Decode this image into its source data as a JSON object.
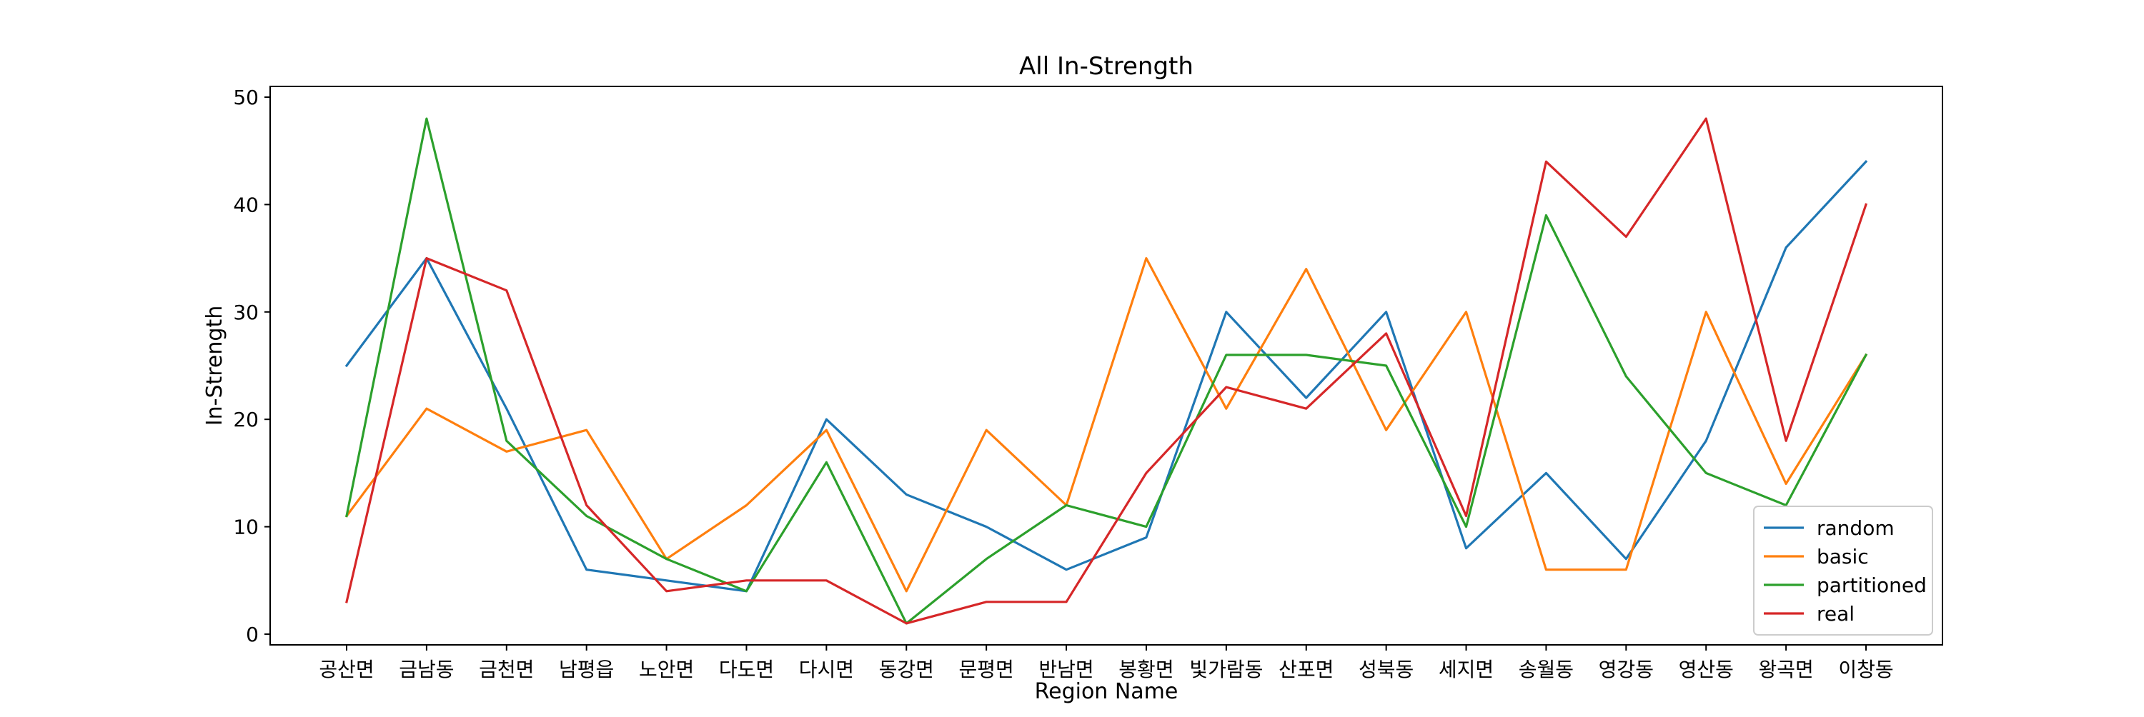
{
  "chart_data": {
    "type": "line",
    "title": "All In-Strength",
    "xlabel": "Region Name",
    "ylabel": "In-Strength",
    "categories": [
      "공산면",
      "금남동",
      "금천면",
      "남평읍",
      "노안면",
      "다도면",
      "다시면",
      "동강면",
      "문평면",
      "반남면",
      "봉황면",
      "빛가람동",
      "산포면",
      "성북동",
      "세지면",
      "송월동",
      "영강동",
      "영산동",
      "왕곡면",
      "이창동"
    ],
    "ylim": [
      -1,
      51
    ],
    "yticks": [
      0,
      10,
      20,
      30,
      40,
      50
    ],
    "grid": false,
    "legend_position": "lower right",
    "series": [
      {
        "name": "random",
        "color": "#1f77b4",
        "values": [
          25,
          35,
          21,
          6,
          5,
          4,
          20,
          13,
          10,
          6,
          9,
          30,
          22,
          30,
          8,
          15,
          7,
          18,
          36,
          44
        ]
      },
      {
        "name": "basic",
        "color": "#ff7f0e",
        "values": [
          11,
          21,
          17,
          19,
          7,
          12,
          19,
          4,
          19,
          12,
          35,
          21,
          34,
          19,
          30,
          6,
          6,
          30,
          14,
          26
        ]
      },
      {
        "name": "partitioned",
        "color": "#2ca02c",
        "values": [
          11,
          48,
          18,
          11,
          7,
          4,
          16,
          1,
          7,
          12,
          10,
          26,
          26,
          25,
          10,
          39,
          24,
          15,
          12,
          26
        ]
      },
      {
        "name": "real",
        "color": "#d62728",
        "values": [
          3,
          35,
          32,
          12,
          4,
          5,
          5,
          1,
          3,
          3,
          15,
          23,
          21,
          28,
          11,
          44,
          37,
          48,
          18,
          40
        ]
      }
    ]
  }
}
